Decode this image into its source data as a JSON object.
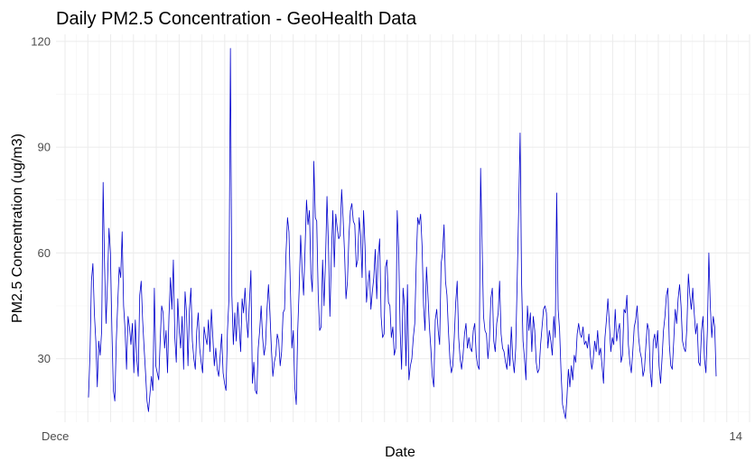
{
  "chart_data": {
    "type": "line",
    "title": "Daily PM2.5 Concentration - GeoHealth Data",
    "xlabel": "Date",
    "ylabel": "PM2.5 Concentration (ug/m3)",
    "ylim": [
      12,
      122
    ],
    "yticks": [
      30,
      60,
      90,
      120
    ],
    "grid": true,
    "legend": "none",
    "series_color": "#0000cd",
    "x_tick_labels_visible_fragments": [
      "Dece",
      "14"
    ],
    "series": [
      {
        "values": [
          19,
          31,
          52,
          57,
          43,
          35,
          22,
          35,
          31,
          38,
          80,
          56,
          40,
          52,
          67,
          60,
          38,
          21,
          18,
          35,
          46,
          56,
          53,
          66,
          45,
          38,
          27,
          42,
          39,
          34,
          40,
          26,
          41,
          30,
          25,
          48,
          52,
          41,
          33,
          26,
          18,
          15,
          20,
          25,
          21,
          50,
          28,
          26,
          24,
          35,
          45,
          43,
          33,
          38,
          26,
          42,
          53,
          44,
          58,
          36,
          29,
          47,
          38,
          33,
          42,
          27,
          49,
          43,
          28,
          44,
          50,
          35,
          30,
          27,
          38,
          43,
          33,
          29,
          26,
          39,
          36,
          34,
          41,
          32,
          44,
          36,
          28,
          33,
          27,
          25,
          31,
          37,
          26,
          23,
          21,
          38,
          47,
          118,
          48,
          34,
          43,
          35,
          46,
          39,
          32,
          47,
          43,
          50,
          41,
          36,
          46,
          55,
          23,
          29,
          21,
          20,
          33,
          38,
          45,
          36,
          31,
          34,
          44,
          51,
          43,
          33,
          25,
          29,
          31,
          37,
          35,
          28,
          32,
          43,
          44,
          60,
          70,
          66,
          50,
          33,
          38,
          22,
          17,
          38,
          50,
          65,
          55,
          48,
          61,
          75,
          68,
          72,
          54,
          49,
          86,
          70,
          69,
          48,
          38,
          39,
          58,
          45,
          58,
          76,
          62,
          42,
          59,
          72,
          56,
          71,
          67,
          64,
          65,
          78,
          70,
          60,
          47,
          52,
          65,
          72,
          74,
          69,
          68,
          56,
          58,
          70,
          65,
          53,
          72,
          62,
          46,
          51,
          55,
          44,
          49,
          53,
          61,
          47,
          59,
          64,
          42,
          36,
          37,
          56,
          58,
          46,
          45,
          36,
          39,
          31,
          33,
          72,
          61,
          38,
          27,
          50,
          45,
          28,
          51,
          24,
          28,
          30,
          36,
          40,
          57,
          70,
          68,
          71,
          62,
          45,
          38,
          56,
          48,
          39,
          33,
          25,
          22,
          41,
          44,
          38,
          34,
          57,
          60,
          68,
          52,
          48,
          38,
          30,
          26,
          28,
          36,
          46,
          52,
          36,
          30,
          27,
          31,
          37,
          40,
          33,
          36,
          33,
          32,
          38,
          40,
          31,
          28,
          27,
          84,
          63,
          42,
          38,
          37,
          30,
          35,
          47,
          50,
          35,
          32,
          40,
          43,
          52,
          37,
          33,
          32,
          29,
          27,
          34,
          28,
          39,
          30,
          26,
          33,
          52,
          72,
          94,
          52,
          35,
          30,
          24,
          45,
          38,
          43,
          32,
          42,
          38,
          29,
          26,
          27,
          34,
          39,
          44,
          45,
          43,
          33,
          38,
          35,
          31,
          42,
          36,
          77,
          44,
          38,
          26,
          17,
          15,
          13,
          19,
          27,
          22,
          28,
          24,
          31,
          29,
          37,
          40,
          37,
          36,
          39,
          34,
          35,
          33,
          37,
          31,
          27,
          30,
          35,
          32,
          38,
          31,
          33,
          28,
          23,
          36,
          41,
          47,
          40,
          32,
          36,
          34,
          44,
          35,
          38,
          40,
          29,
          31,
          44,
          43,
          48,
          34,
          29,
          26,
          32,
          39,
          41,
          45,
          36,
          32,
          30,
          25,
          27,
          34,
          40,
          38,
          26,
          22,
          35,
          37,
          33,
          38,
          28,
          23,
          30,
          38,
          42,
          48,
          50,
          34,
          28,
          27,
          35,
          44,
          40,
          47,
          51,
          45,
          35,
          33,
          32,
          39,
          54,
          48,
          44,
          50,
          43,
          37,
          40,
          29,
          28,
          38,
          42,
          30,
          26,
          38,
          60,
          45,
          36,
          42,
          39,
          25
        ]
      }
    ]
  }
}
